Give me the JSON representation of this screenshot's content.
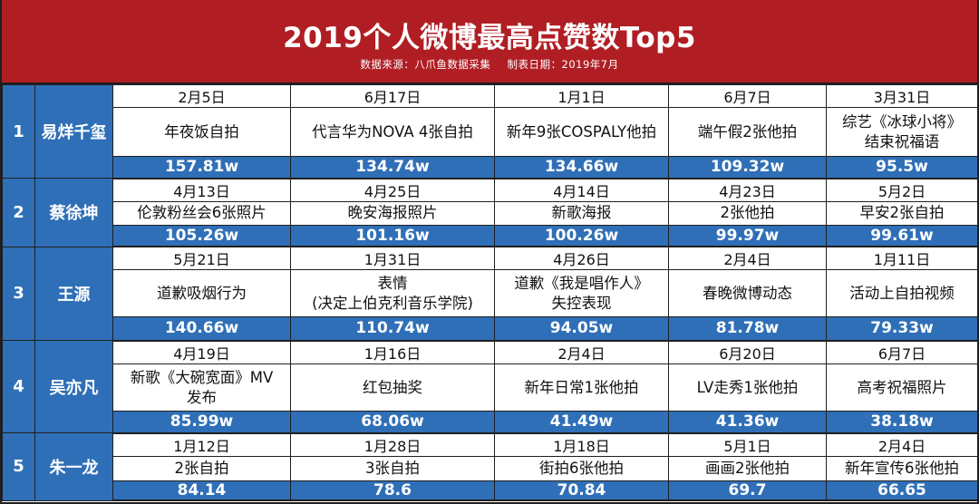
{
  "header": {
    "title": "2019个人微博最高点赞数Top5",
    "source": "数据来源：八爪鱼数据采集",
    "date_label": "制表日期：2019年7月"
  },
  "rows": [
    {
      "rank": "1",
      "name": "易烊千玺",
      "cells": [
        {
          "date": "2月5日",
          "desc": [
            "年夜饭自拍"
          ],
          "likes": "157.81w"
        },
        {
          "date": "6月17日",
          "desc": [
            "代言华为NOVA 4张自拍"
          ],
          "likes": "134.74w"
        },
        {
          "date": "1月1日",
          "desc": [
            "新年9张COSPALY他拍"
          ],
          "likes": "134.66w"
        },
        {
          "date": "6月7日",
          "desc": [
            "端午假2张他拍"
          ],
          "likes": "109.32w"
        },
        {
          "date": "3月31日",
          "desc": [
            "综艺《冰球小将》",
            "结束祝福语"
          ],
          "likes": "95.5w"
        }
      ]
    },
    {
      "rank": "2",
      "name": "蔡徐坤",
      "cells": [
        {
          "date": "4月13日",
          "desc": [
            "伦敦粉丝会6张照片"
          ],
          "likes": "105.26w"
        },
        {
          "date": "4月25日",
          "desc": [
            "晚安海报照片"
          ],
          "likes": "101.16w"
        },
        {
          "date": "4月14日",
          "desc": [
            "新歌海报"
          ],
          "likes": "100.26w"
        },
        {
          "date": "4月23日",
          "desc": [
            "2张他拍"
          ],
          "likes": "99.97w"
        },
        {
          "date": "5月2日",
          "desc": [
            "早安2张自拍"
          ],
          "likes": "99.61w"
        }
      ]
    },
    {
      "rank": "3",
      "name": "王源",
      "cells": [
        {
          "date": "5月21日",
          "desc": [
            "道歉吸烟行为"
          ],
          "likes": "140.66w"
        },
        {
          "date": "1月31日",
          "desc": [
            "表情",
            "(决定上伯克利音乐学院)"
          ],
          "likes": "110.74w"
        },
        {
          "date": "4月26日",
          "desc": [
            "道歉《我是唱作人》",
            "失控表现"
          ],
          "likes": "94.05w"
        },
        {
          "date": "2月4日",
          "desc": [
            "春晚微博动态"
          ],
          "likes": "81.78w"
        },
        {
          "date": "1月11日",
          "desc": [
            "活动上自拍视频"
          ],
          "likes": "79.33w"
        }
      ]
    },
    {
      "rank": "4",
      "name": "吴亦凡",
      "cells": [
        {
          "date": "4月19日",
          "desc": [
            "新歌《大碗宽面》MV",
            "发布"
          ],
          "likes": "85.99w"
        },
        {
          "date": "1月16日",
          "desc": [
            "红包抽奖"
          ],
          "likes": "68.06w"
        },
        {
          "date": "2月4日",
          "desc": [
            "新年日常1张他拍"
          ],
          "likes": "41.49w"
        },
        {
          "date": "6月20日",
          "desc": [
            "LV走秀1张他拍"
          ],
          "likes": "41.36w"
        },
        {
          "date": "6月7日",
          "desc": [
            "高考祝福照片"
          ],
          "likes": "38.18w"
        }
      ]
    },
    {
      "rank": "5",
      "name": "朱一龙",
      "cells": [
        {
          "date": "1月12日",
          "desc": [
            "2张自拍"
          ],
          "likes": "84.14"
        },
        {
          "date": "1月28日",
          "desc": [
            "3张自拍"
          ],
          "likes": "78.6"
        },
        {
          "date": "1月18日",
          "desc": [
            "街拍6张他拍"
          ],
          "likes": "70.84"
        },
        {
          "date": "5月1日",
          "desc": [
            "画画2张他拍"
          ],
          "likes": "69.7"
        },
        {
          "date": "2月4日",
          "desc": [
            "新年宣传6张他拍"
          ],
          "likes": "66.65"
        }
      ]
    }
  ],
  "colors": {
    "header_red": "#b01e24",
    "cell_blue": "#2f6fb7",
    "border": "#1f1f1f"
  }
}
